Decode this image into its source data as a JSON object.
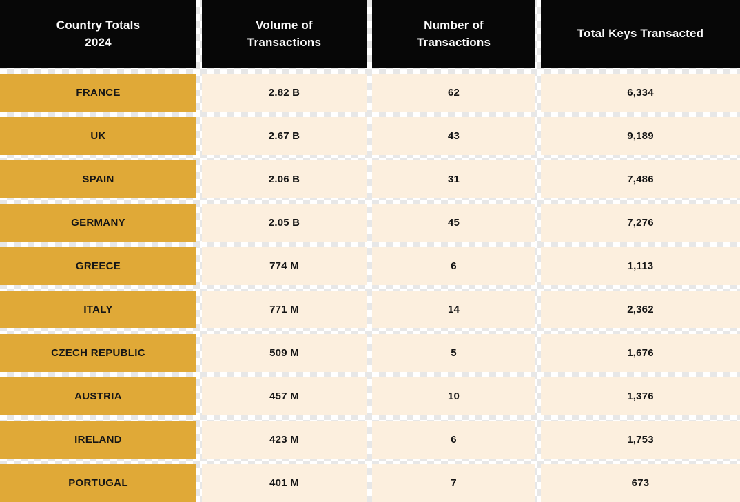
{
  "chart_data": {
    "type": "table",
    "title": "Country Totals 2024",
    "columns": [
      "Country Totals\n2024",
      "Volume of\nTransactions",
      "Number of\nTransactions",
      "Total Keys Transacted"
    ],
    "rows": [
      [
        "FRANCE",
        "2.82 B",
        "62",
        "6,334"
      ],
      [
        "UK",
        "2.67 B",
        "43",
        "9,189"
      ],
      [
        "SPAIN",
        "2.06 B",
        "31",
        "7,486"
      ],
      [
        "GERMANY",
        "2.05 B",
        "45",
        "7,276"
      ],
      [
        "GREECE",
        "774 M",
        "6",
        "1,113"
      ],
      [
        "ITALY",
        "771 M",
        "14",
        "2,362"
      ],
      [
        "CZECH REPUBLIC",
        "509 M",
        "5",
        "1,676"
      ],
      [
        "AUSTRIA",
        "457 M",
        "10",
        "1,376"
      ],
      [
        "IRELAND",
        "423 M",
        "6",
        "1,753"
      ],
      [
        "PORTUGAL",
        "401 M",
        "7",
        "673"
      ]
    ],
    "layout": {
      "legend": "none",
      "grid": "off",
      "last_row_clipped_at_bottom": true
    }
  },
  "colors": {
    "header_bg": "#070707",
    "header_text": "#fafafa",
    "country_cell_bg": "#e0a937",
    "value_cell_bg": "#fcefde",
    "cell_text": "#161616",
    "checker_light": "#ffffff",
    "checker_dark": "#e7e7e7"
  }
}
